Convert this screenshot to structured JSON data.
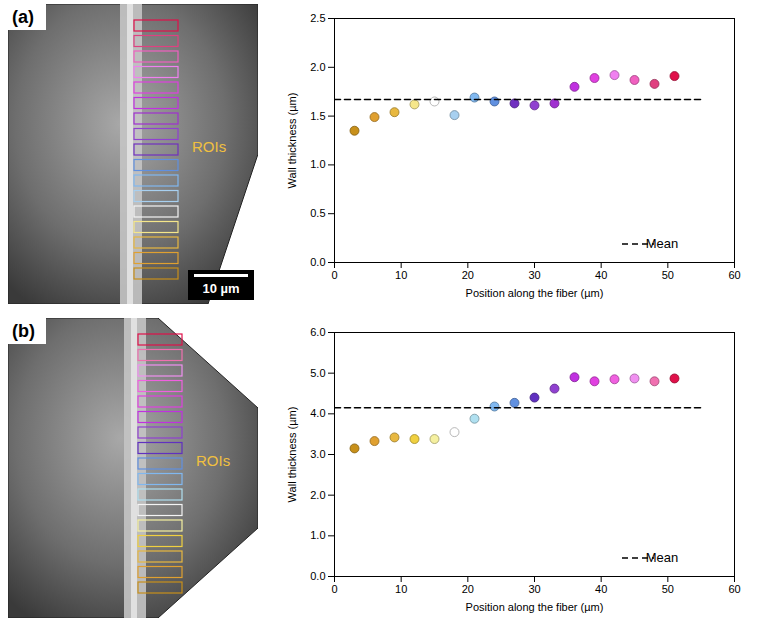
{
  "figure": {
    "panels": [
      {
        "label": "(a)",
        "roi_label": "ROIs",
        "scale_bar": "10 µm"
      },
      {
        "label": "(b)",
        "roi_label": "ROIs"
      }
    ]
  },
  "chart_data": [
    {
      "type": "scatter",
      "x_label": "Position along the fiber (µm)",
      "y_label": "Wall thickness (µm)",
      "xlim": [
        0,
        60
      ],
      "xticks": [
        0,
        10,
        20,
        30,
        40,
        50,
        60
      ],
      "ylim": [
        0,
        2.5
      ],
      "yticks": [
        {
          "value": 0,
          "label": "0.0"
        },
        {
          "value": 0.5,
          "label": "0.5"
        },
        {
          "value": 1,
          "label": "1.0"
        },
        {
          "value": 1.5,
          "label": "1.5"
        },
        {
          "value": 2,
          "label": "2.0"
        },
        {
          "value": 2.5,
          "label": "2.5"
        }
      ],
      "legend": "lower right",
      "series": [
        {
          "type": "scatter",
          "marker": "o",
          "x": [
            3,
            6,
            9,
            12,
            15,
            18,
            21,
            24,
            27,
            30,
            33,
            36,
            39,
            42,
            45,
            48,
            51
          ],
          "values": [
            1.35,
            1.49,
            1.54,
            1.62,
            1.65,
            1.51,
            1.69,
            1.65,
            1.63,
            1.61,
            1.63,
            1.8,
            1.89,
            1.92,
            1.87,
            1.83,
            1.91
          ],
          "colors": [
            "#c8901a",
            "#e0a030",
            "#e8b840",
            "#f5e68a",
            "#ffffff",
            "#a8d0f0",
            "#80b8f0",
            "#6090e0",
            "#7030c0",
            "#9040d0",
            "#a030d0",
            "#c030e0",
            "#e040e0",
            "#f080f0",
            "#f060c0",
            "#e04080",
            "#e0104a"
          ]
        },
        {
          "name": "Mean",
          "type": "line",
          "line_style": "dashed",
          "color": "#000000",
          "x": [
            0,
            55
          ],
          "values": [
            1.67,
            1.67
          ]
        }
      ]
    },
    {
      "type": "scatter",
      "x_label": "Position along the fiber (µm)",
      "y_label": "Wall thickness (µm)",
      "xlim": [
        0,
        60
      ],
      "xticks": [
        0,
        10,
        20,
        30,
        40,
        50,
        60
      ],
      "ylim": [
        0,
        6
      ],
      "yticks": [
        {
          "value": 0,
          "label": "0.0"
        },
        {
          "value": 1,
          "label": "1.0"
        },
        {
          "value": 2,
          "label": "2.0"
        },
        {
          "value": 3,
          "label": "3.0"
        },
        {
          "value": 4,
          "label": "4.0"
        },
        {
          "value": 5,
          "label": "5.0"
        },
        {
          "value": 6,
          "label": "6.0"
        }
      ],
      "legend": "lower right",
      "series": [
        {
          "type": "scatter",
          "marker": "o",
          "x": [
            3,
            6,
            9,
            12,
            15,
            18,
            21,
            24,
            27,
            30,
            33,
            36,
            39,
            42,
            45,
            48,
            51
          ],
          "values": [
            3.15,
            3.33,
            3.42,
            3.38,
            3.38,
            3.55,
            3.88,
            4.18,
            4.27,
            4.4,
            4.62,
            4.9,
            4.8,
            4.85,
            4.87,
            4.8,
            4.87
          ],
          "colors": [
            "#c8901a",
            "#e0a030",
            "#e8b840",
            "#f0d040",
            "#f5f0a0",
            "#ffffff",
            "#b0e0f0",
            "#80b8f0",
            "#6090e0",
            "#6030c0",
            "#9040d0",
            "#c030e0",
            "#e040e0",
            "#f060e0",
            "#f090f0",
            "#f070b0",
            "#e0104a"
          ]
        },
        {
          "name": "Mean",
          "type": "line",
          "line_style": "dashed",
          "color": "#000000",
          "x": [
            0,
            55
          ],
          "values": [
            4.15,
            4.15
          ]
        }
      ]
    }
  ]
}
